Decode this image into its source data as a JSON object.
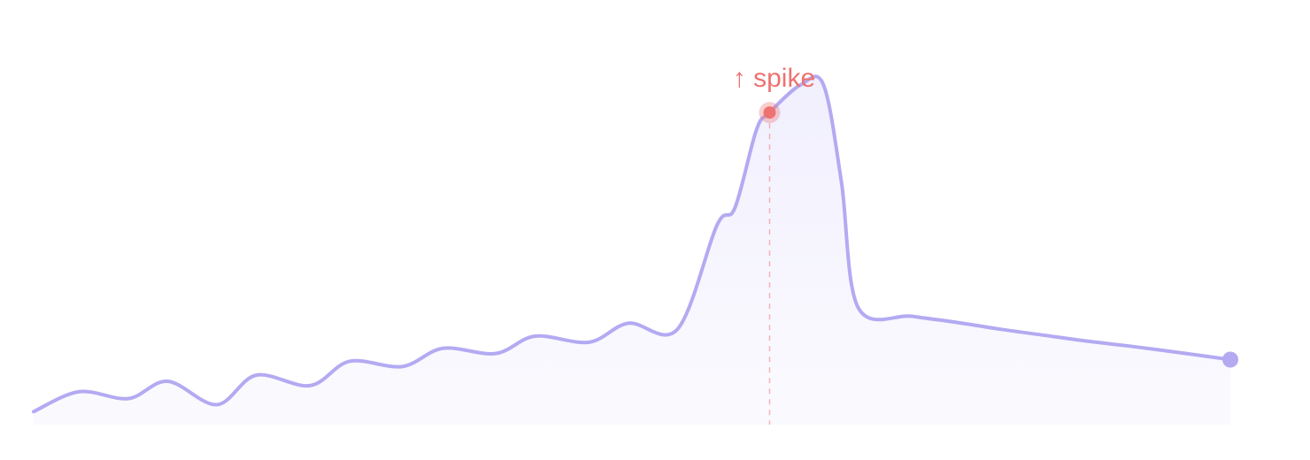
{
  "chart_data": {
    "type": "area",
    "title": "",
    "xlabel": "",
    "ylabel": "",
    "xlim": [
      0,
      100
    ],
    "ylim": [
      0,
      100
    ],
    "grid": false,
    "axes_visible": false,
    "colors": {
      "line": "#b3aaf2",
      "fill": "#efedfd",
      "annotation": "#ee7272"
    },
    "x": [
      0,
      3.8,
      7.9,
      11.2,
      15.3,
      18.6,
      23.1,
      26.4,
      30.8,
      34.2,
      38.6,
      41.9,
      46.4,
      49.7,
      53.8,
      57.1,
      58.6,
      60.4,
      61.5,
      64.1,
      66,
      67.5,
      68.9,
      73.4,
      77.1,
      80.8,
      84.5,
      88.2,
      91.9,
      96.3,
      100
    ],
    "y": [
      3.75,
      9.5,
      7.5,
      12.5,
      5.75,
      14.25,
      11.25,
      18.25,
      16.75,
      22,
      20.5,
      25.5,
      23.75,
      29.25,
      27.5,
      57.5,
      62.5,
      85,
      90,
      98,
      98,
      70,
      33.75,
      31.25,
      29.5,
      27.5,
      25.75,
      24,
      22.5,
      20.5,
      18.75
    ],
    "annotation": {
      "label": "↑ spike",
      "x": 61.5,
      "y": 90
    },
    "end_marker": {
      "x": 100,
      "y": 18.75
    }
  }
}
